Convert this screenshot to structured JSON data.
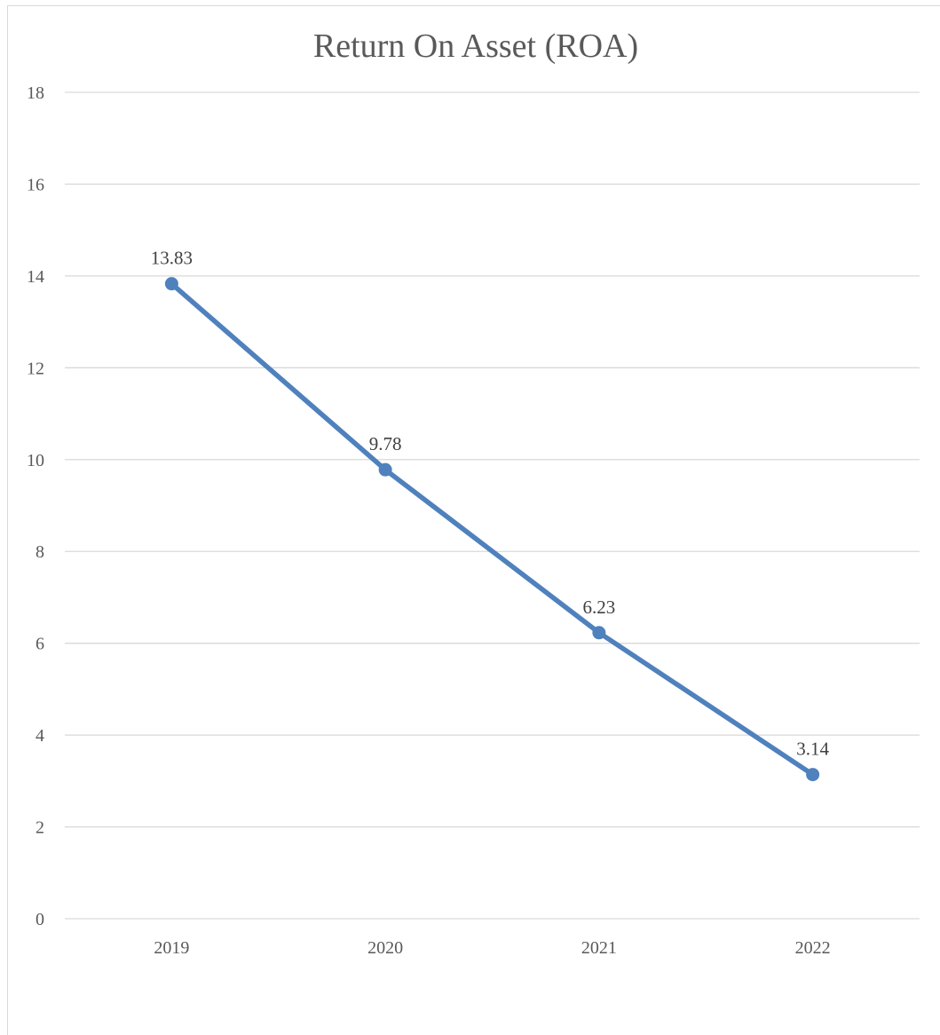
{
  "chart_data": {
    "type": "line",
    "title": "Return On Asset (ROA)",
    "xlabel": "",
    "ylabel": "",
    "categories": [
      "2019",
      "2020",
      "2021",
      "2022"
    ],
    "series": [
      {
        "values": [
          13.83,
          9.78,
          6.23,
          3.14
        ],
        "labels": [
          "13.83",
          "9.78",
          "6.23",
          "3.14"
        ],
        "color": "#4f81bd"
      }
    ],
    "ylim": [
      0,
      18
    ],
    "yticks": [
      "0",
      "2",
      "4",
      "6",
      "8",
      "10",
      "12",
      "14",
      "16",
      "18"
    ],
    "grid": true,
    "legend": "none",
    "colors": {
      "line": "#4f81bd",
      "grid": "#d9d9d9",
      "text": "#595959"
    }
  }
}
